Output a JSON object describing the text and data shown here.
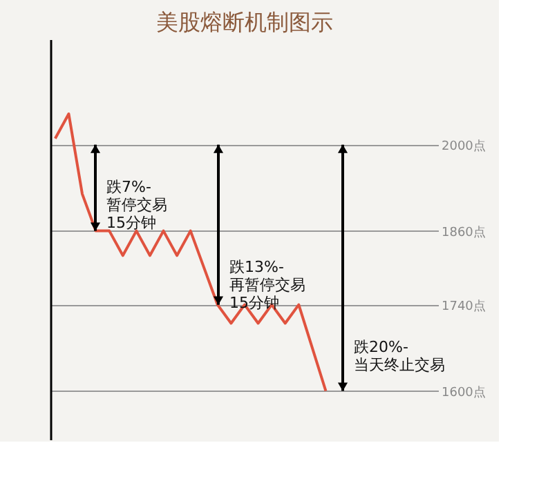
{
  "chart_data": {
    "type": "line",
    "title": "美股熔断机制图示",
    "categories": [
      null,
      null,
      null,
      null,
      null,
      null,
      null,
      null,
      null,
      null,
      null,
      null,
      null,
      null,
      null,
      null,
      null,
      null,
      null,
      null,
      null,
      null,
      null,
      null,
      null,
      null,
      null,
      null,
      null
    ],
    "values": [
      2010,
      2050,
      1920,
      1860,
      1860,
      1820,
      1860,
      1820,
      1860,
      1820,
      1860,
      1800,
      1740,
      1710,
      1740,
      1710,
      1740,
      1710,
      1740,
      1670,
      1600,
      null,
      null,
      null,
      null,
      null,
      null,
      null,
      null
    ],
    "color": "#e0533f",
    "ylim": [
      1520,
      2170
    ],
    "yticks": [
      {
        "value": 2000,
        "label": "2000点"
      },
      {
        "value": 1860,
        "label": "1860点"
      },
      {
        "value": 1740,
        "label": "1740点"
      },
      {
        "value": 1600,
        "label": "1600点"
      }
    ],
    "tick_labels": "y",
    "grid": "y",
    "marker": "none",
    "line_style": "solid",
    "annotations": [
      "跌7%-\n暂停交易\n15分钟",
      "跌13%-\n再暂停交易\n15分钟",
      "跌20%-\n当天终止交易"
    ]
  }
}
